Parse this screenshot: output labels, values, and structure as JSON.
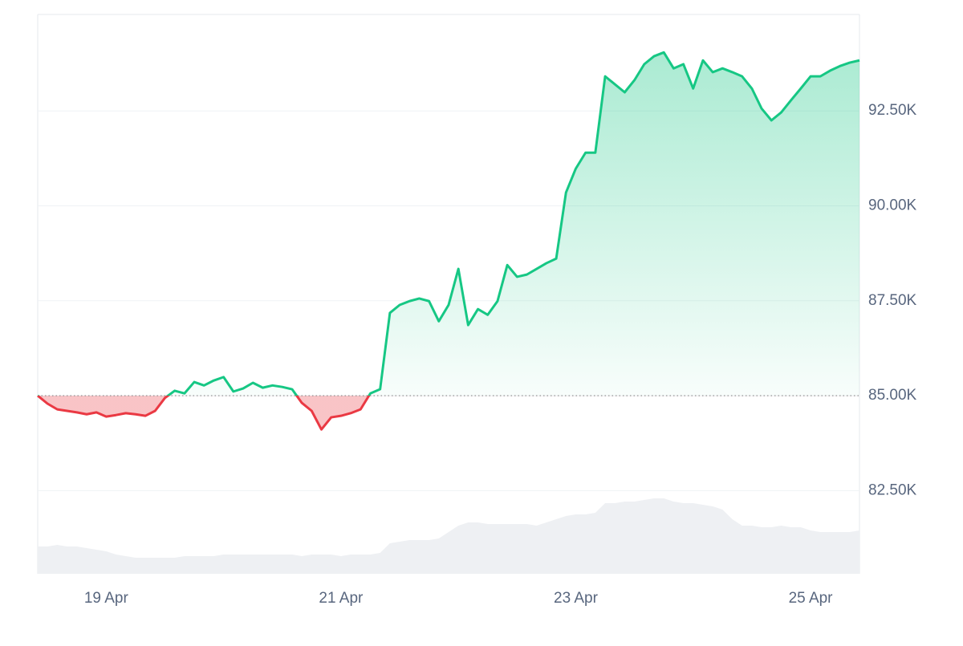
{
  "chart_data": {
    "type": "line",
    "categories": [
      null,
      null,
      null,
      null,
      null,
      null,
      null,
      "19 Apr",
      null,
      null,
      null,
      null,
      null,
      null,
      null,
      null,
      null,
      null,
      null,
      null,
      null,
      null,
      null,
      null,
      null,
      null,
      null,
      null,
      null,
      null,
      null,
      "21 Apr",
      null,
      null,
      null,
      null,
      null,
      null,
      null,
      null,
      null,
      null,
      null,
      null,
      null,
      null,
      null,
      null,
      null,
      null,
      null,
      null,
      null,
      null,
      null,
      "23 Apr",
      null,
      null,
      null,
      null,
      null,
      null,
      null,
      null,
      null,
      null,
      null,
      null,
      null,
      null,
      null,
      null,
      null,
      null,
      null,
      null,
      null,
      null,
      null,
      "25 Apr",
      null,
      null,
      null,
      null,
      null
    ],
    "values": [
      85000,
      84790,
      84640,
      84600,
      84560,
      84510,
      84560,
      84450,
      84490,
      84540,
      84510,
      84470,
      84600,
      84940,
      85130,
      85060,
      85360,
      85270,
      85400,
      85490,
      85110,
      85190,
      85340,
      85210,
      85270,
      85230,
      85170,
      84810,
      84600,
      84110,
      84430,
      84470,
      84540,
      84640,
      85060,
      85170,
      87180,
      87390,
      87490,
      87560,
      87490,
      86960,
      87390,
      88340,
      86860,
      87280,
      87130,
      87490,
      88440,
      88130,
      88190,
      88340,
      88490,
      88610,
      90350,
      90980,
      91400,
      91400,
      93410,
      93200,
      92990,
      93310,
      93730,
      93940,
      94040,
      93620,
      93730,
      93090,
      93830,
      93520,
      93620,
      93520,
      93410,
      93090,
      92560,
      92250,
      92460,
      92780,
      93090,
      93410,
      93410,
      93560,
      93680,
      93770,
      93830
    ],
    "volume": [
      17,
      17,
      18,
      17,
      17,
      16,
      15,
      14,
      12,
      11,
      10,
      10,
      10,
      10,
      10,
      11,
      11,
      11,
      11,
      12,
      12,
      12,
      12,
      12,
      12,
      12,
      12,
      11,
      12,
      12,
      12,
      11,
      12,
      12,
      12,
      13,
      19,
      20,
      21,
      21,
      21,
      22,
      26,
      30,
      32,
      32,
      31,
      31,
      31,
      31,
      31,
      30,
      32,
      34,
      36,
      37,
      37,
      38,
      44,
      44,
      45,
      45,
      46,
      47,
      47,
      45,
      44,
      44,
      43,
      42,
      40,
      34,
      30,
      30,
      29,
      29,
      30,
      29,
      29,
      27,
      26,
      26,
      26,
      26,
      27
    ],
    "y2lim": [
      0,
      100
    ],
    "baseline": 85000,
    "up_color": "#16c784",
    "down_color": "#ea3943",
    "volume_color": "#eef0f3",
    "ylim": [
      80310,
      95040
    ],
    "yticks": [
      {
        "value": 82500,
        "label": "82.50K"
      },
      {
        "value": 85000,
        "label": "85.00K"
      },
      {
        "value": 87500,
        "label": "87.50K"
      },
      {
        "value": 90000,
        "label": "90.00K"
      },
      {
        "value": 92500,
        "label": "92.50K"
      }
    ],
    "grid": true
  }
}
